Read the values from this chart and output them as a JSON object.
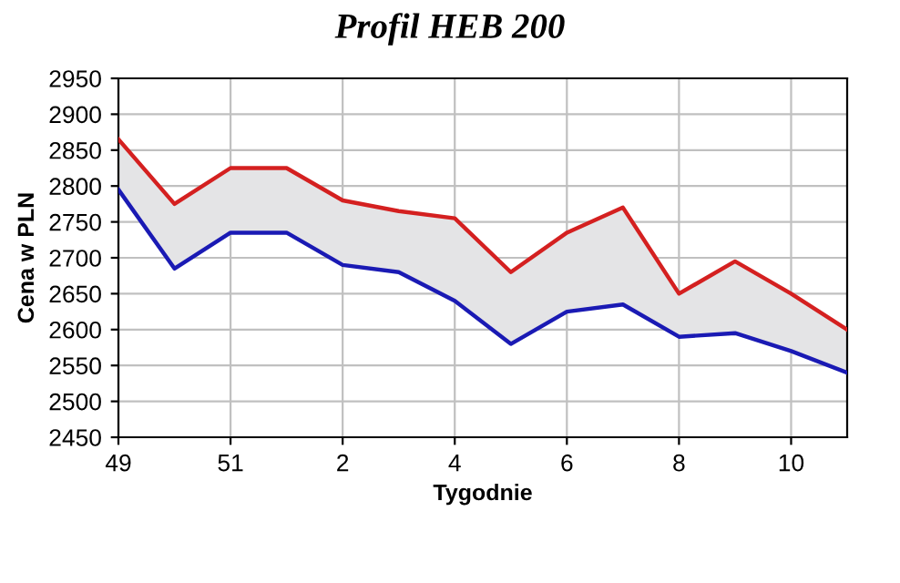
{
  "chart_data": {
    "type": "line",
    "title": "Profil HEB 200",
    "xlabel": "Tygodnie",
    "ylabel": "Cena w PLN",
    "categories": [
      "49",
      null,
      "51",
      null,
      "2",
      null,
      "4",
      null,
      "6",
      null,
      "8",
      null,
      "10",
      null
    ],
    "series": [
      {
        "color": "#d42020",
        "values": [
          2865,
          2775,
          2825,
          2825,
          2780,
          2765,
          2755,
          2680,
          2735,
          2770,
          2650,
          2695,
          2650,
          2600
        ],
        "lower": [
          2795,
          2685,
          2735,
          2735,
          2690,
          2680,
          2640,
          2580,
          2625,
          2635,
          2590,
          2595,
          2570,
          2540
        ],
        "upper": [
          2865,
          2775,
          2825,
          2825,
          2780,
          2765,
          2755,
          2680,
          2735,
          2770,
          2650,
          2695,
          2650,
          2600
        ]
      },
      {
        "color": "#1a1ab4",
        "values": [
          2795,
          2685,
          2735,
          2735,
          2690,
          2680,
          2640,
          2580,
          2625,
          2635,
          2590,
          2595,
          2570,
          2540
        ]
      }
    ],
    "ylim": [
      2450,
      2950
    ],
    "yticks": [
      2450,
      2500,
      2550,
      2600,
      2650,
      2700,
      2750,
      2800,
      2850,
      2900,
      2950
    ],
    "grid": true,
    "marker": "none",
    "line_style": "solid"
  }
}
